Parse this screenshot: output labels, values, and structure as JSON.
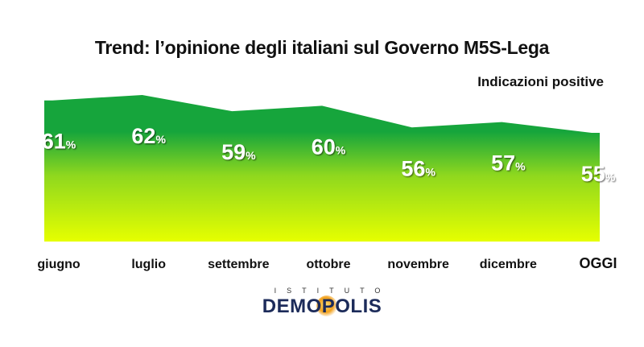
{
  "title": "Trend: l’opinione degli italiani sul Governo M5S-Lega",
  "subtitle": "Indicazioni positive",
  "logo": {
    "top": "ISTITUTO",
    "main": "DEMOPOLIS"
  },
  "colors": {
    "top": "#16a53c",
    "bottom": "#e6ff00",
    "label": "#ffffff"
  },
  "chart_data": {
    "type": "area",
    "title": "Trend: l’opinione degli italiani sul Governo M5S-Lega",
    "subtitle": "Indicazioni positive",
    "categories": [
      "giugno",
      "luglio",
      "settembre",
      "ottobre",
      "novembre",
      "dicembre",
      "OGGI"
    ],
    "values": [
      61,
      62,
      59,
      60,
      56,
      57,
      55
    ],
    "value_suffix": "%",
    "grid": false,
    "legend": "none"
  }
}
